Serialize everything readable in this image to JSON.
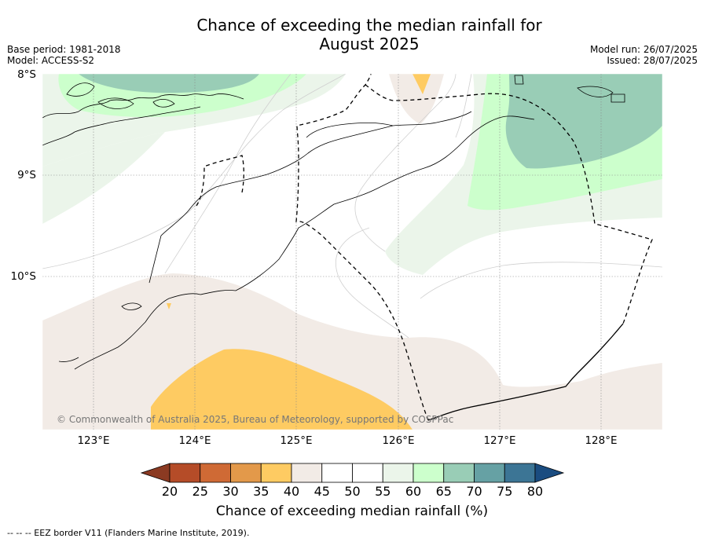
{
  "title_line1": "Chance of exceeding the median rainfall for",
  "title_line2": "August 2025",
  "meta_left": {
    "base_period": "Base period: 1981-2018",
    "model": "Model: ACCESS-S2"
  },
  "meta_right": {
    "model_run": "Model run: 26/07/2025",
    "issued": "Issued: 28/07/2025"
  },
  "map": {
    "lat_labels": [
      "8°S",
      "9°S",
      "10°S"
    ],
    "lon_labels": [
      "123°E",
      "124°E",
      "125°E",
      "126°E",
      "127°E",
      "128°E"
    ],
    "lat_range": [
      -11.5,
      -8.0
    ],
    "lon_range": [
      122.5,
      128.6
    ],
    "copyright": "© Commonwealth of Australia 2025, Bureau of Meteorology, supported by COSPPac"
  },
  "colorbar": {
    "ticks": [
      "20",
      "25",
      "30",
      "35",
      "40",
      "45",
      "50",
      "55",
      "60",
      "65",
      "70",
      "75",
      "80"
    ],
    "colors": [
      "#8b3a22",
      "#b54c28",
      "#cf6a35",
      "#e3994a",
      "#fecb62",
      "#f2ebe6",
      "#ffffff",
      "#ffffff",
      "#ebf5ea",
      "#ccffcc",
      "#99cdb6",
      "#66a1a4",
      "#3c7595",
      "#1a4c80"
    ],
    "label": "Chance of exceeding median rainfall (%)"
  },
  "footnote": "--  --  -- EEZ border V11 (Flanders Marine Institute, 2019)."
}
